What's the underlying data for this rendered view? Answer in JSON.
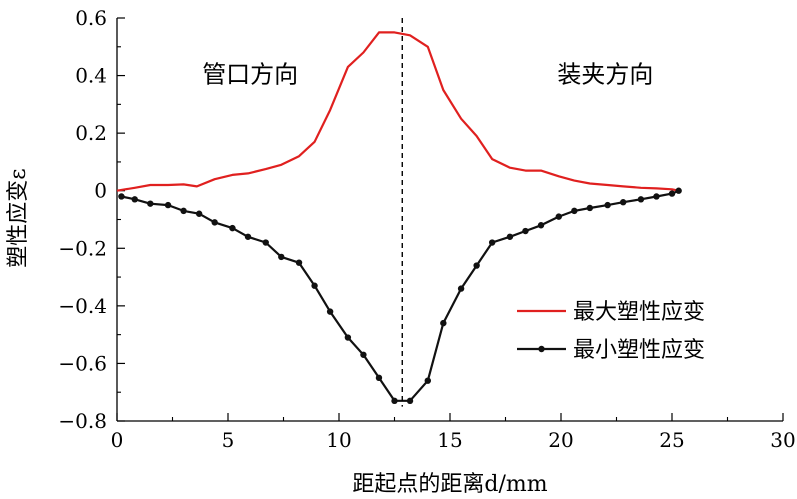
{
  "chart_data": {
    "type": "line",
    "xlabel": "距起点的距离d/mm",
    "ylabel": "塑性应变ε",
    "xlim": [
      0,
      30
    ],
    "ylim": [
      -0.8,
      0.6
    ],
    "x_ticks": [
      "0",
      "5",
      "10",
      "15",
      "20",
      "25",
      "30"
    ],
    "y_ticks": [
      "−0.8",
      "−0.6",
      "−0.4",
      "−0.2",
      "0",
      "0.2",
      "0.4",
      "0.6"
    ],
    "grid": false,
    "legend_position": "bottom-right",
    "annotations": [
      {
        "text": "管口方向",
        "x": 6.0,
        "y": 0.4
      },
      {
        "text": "装夹方向",
        "x": 22.0,
        "y": 0.4
      }
    ],
    "vline": {
      "x": 12.85,
      "style": "dashed"
    },
    "series": [
      {
        "name": "最大塑性应变",
        "color": "#e0201f",
        "marker": "none",
        "x": [
          0.0,
          0.8,
          1.5,
          2.3,
          3.0,
          3.6,
          4.4,
          5.2,
          5.9,
          6.7,
          7.4,
          8.2,
          8.9,
          9.6,
          10.4,
          11.1,
          11.8,
          12.5,
          13.2,
          14.0,
          14.7,
          15.5,
          16.2,
          16.9,
          17.7,
          18.4,
          19.1,
          19.9,
          20.6,
          21.3,
          22.1,
          22.8,
          23.6,
          24.3,
          25.0,
          25.3
        ],
        "y": [
          0.0,
          0.01,
          0.02,
          0.02,
          0.022,
          0.015,
          0.04,
          0.055,
          0.06,
          0.075,
          0.09,
          0.12,
          0.17,
          0.28,
          0.43,
          0.48,
          0.55,
          0.55,
          0.54,
          0.5,
          0.35,
          0.25,
          0.19,
          0.11,
          0.08,
          0.07,
          0.07,
          0.05,
          0.035,
          0.025,
          0.02,
          0.015,
          0.01,
          0.008,
          0.005,
          0.0
        ]
      },
      {
        "name": "最小塑性应变",
        "color": "#111111",
        "marker": "circle",
        "x": [
          0.2,
          0.8,
          1.5,
          2.3,
          3.0,
          3.7,
          4.4,
          5.2,
          5.9,
          6.7,
          7.4,
          8.2,
          8.9,
          9.6,
          10.4,
          11.1,
          11.8,
          12.5,
          13.2,
          14.0,
          14.7,
          15.5,
          16.2,
          16.9,
          17.7,
          18.4,
          19.1,
          19.9,
          20.6,
          21.3,
          22.1,
          22.8,
          23.6,
          24.3,
          25.0,
          25.3
        ],
        "y": [
          -0.02,
          -0.03,
          -0.045,
          -0.05,
          -0.07,
          -0.08,
          -0.11,
          -0.13,
          -0.16,
          -0.18,
          -0.23,
          -0.25,
          -0.33,
          -0.42,
          -0.51,
          -0.57,
          -0.65,
          -0.73,
          -0.73,
          -0.66,
          -0.46,
          -0.34,
          -0.26,
          -0.18,
          -0.16,
          -0.14,
          -0.12,
          -0.09,
          -0.07,
          -0.06,
          -0.05,
          -0.04,
          -0.03,
          -0.02,
          -0.01,
          0.0
        ]
      }
    ]
  }
}
